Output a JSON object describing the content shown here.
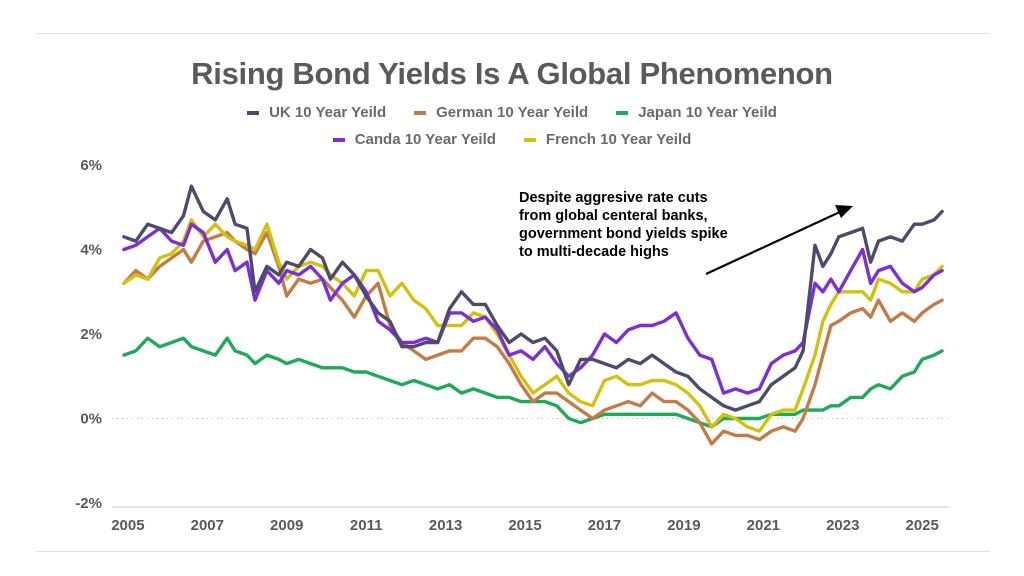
{
  "title": "Rising Bond Yields Is A Global Phenomenon",
  "legend": [
    {
      "label": "UK 10 Year Yeild",
      "color": "#4b4b6b"
    },
    {
      "label": "German 10 Year Yeild",
      "color": "#c27c45"
    },
    {
      "label": "Japan 10 Year Yeild",
      "color": "#1faa5a"
    },
    {
      "label": "Canda 10 Year Yeild",
      "color": "#7b2fd6"
    },
    {
      "label": "French 10 Year Yeild",
      "color": "#d2c20d"
    }
  ],
  "annotation": [
    "Despite aggresive rate cuts",
    "from global centeral banks,",
    "government bond yields spike",
    "to multi-decade highs"
  ],
  "chart_data": {
    "type": "line",
    "title": "Rising Bond Yields Is A Global Phenomenon",
    "xlabel": "",
    "ylabel": "",
    "xlim": [
      2004.6,
      2025.7
    ],
    "ylim": [
      -2,
      6
    ],
    "yticks": [
      -2,
      0,
      2,
      4,
      6
    ],
    "ytick_labels": [
      "-2%",
      "0%",
      "2%",
      "4%",
      "6%"
    ],
    "xticks": [
      2005,
      2007,
      2009,
      2011,
      2013,
      2015,
      2017,
      2019,
      2021,
      2023,
      2025
    ],
    "xtick_labels": [
      "2005",
      "2007",
      "2009",
      "2011",
      "2013",
      "2015",
      "2017",
      "2019",
      "2021",
      "2023",
      "2025"
    ],
    "grid": false,
    "zero_line": "dotted",
    "legend_position": "top-center",
    "series": [
      {
        "name": "UK 10 Year Yeild",
        "color": "#4b4b6b",
        "x": [
          2004.9,
          2005.2,
          2005.5,
          2005.8,
          2006.1,
          2006.4,
          2006.6,
          2006.9,
          2007.2,
          2007.5,
          2007.7,
          2008.0,
          2008.2,
          2008.5,
          2008.8,
          2009.0,
          2009.3,
          2009.6,
          2009.9,
          2010.1,
          2010.4,
          2010.7,
          2011.0,
          2011.3,
          2011.6,
          2011.9,
          2012.2,
          2012.5,
          2012.8,
          2013.1,
          2013.4,
          2013.7,
          2014.0,
          2014.3,
          2014.6,
          2014.9,
          2015.2,
          2015.5,
          2015.8,
          2016.1,
          2016.4,
          2016.7,
          2017.0,
          2017.3,
          2017.6,
          2017.9,
          2018.2,
          2018.5,
          2018.8,
          2019.1,
          2019.4,
          2019.7,
          2020.0,
          2020.3,
          2020.6,
          2020.9,
          2021.2,
          2021.5,
          2021.8,
          2022.0,
          2022.3,
          2022.5,
          2022.7,
          2022.9,
          2023.2,
          2023.5,
          2023.7,
          2023.9,
          2024.2,
          2024.5,
          2024.8,
          2025.0,
          2025.3,
          2025.5
        ],
        "values": [
          4.3,
          4.2,
          4.6,
          4.5,
          4.4,
          4.8,
          5.5,
          4.9,
          4.7,
          5.2,
          4.6,
          4.5,
          3.0,
          3.6,
          3.4,
          3.7,
          3.6,
          4.0,
          3.8,
          3.3,
          3.7,
          3.4,
          2.9,
          2.5,
          2.3,
          1.7,
          1.7,
          1.8,
          1.8,
          2.6,
          3.0,
          2.7,
          2.7,
          2.2,
          1.8,
          2.0,
          1.8,
          1.9,
          1.6,
          0.8,
          1.4,
          1.4,
          1.3,
          1.2,
          1.4,
          1.3,
          1.5,
          1.3,
          1.1,
          1.0,
          0.7,
          0.5,
          0.3,
          0.2,
          0.3,
          0.4,
          0.8,
          1.0,
          1.2,
          1.6,
          4.1,
          3.6,
          3.9,
          4.3,
          4.4,
          4.5,
          3.7,
          4.2,
          4.3,
          4.2,
          4.6,
          4.6,
          4.7,
          4.9
        ]
      },
      {
        "name": "German 10 Year Yeild",
        "color": "#c27c45",
        "x": [
          2004.9,
          2005.2,
          2005.5,
          2005.8,
          2006.1,
          2006.4,
          2006.6,
          2006.9,
          2007.2,
          2007.5,
          2007.7,
          2008.0,
          2008.2,
          2008.5,
          2008.8,
          2009.0,
          2009.3,
          2009.6,
          2009.9,
          2010.1,
          2010.4,
          2010.7,
          2011.0,
          2011.3,
          2011.6,
          2011.9,
          2012.2,
          2012.5,
          2012.8,
          2013.1,
          2013.4,
          2013.7,
          2014.0,
          2014.3,
          2014.6,
          2014.9,
          2015.2,
          2015.5,
          2015.8,
          2016.1,
          2016.4,
          2016.7,
          2017.0,
          2017.3,
          2017.6,
          2017.9,
          2018.2,
          2018.5,
          2018.8,
          2019.1,
          2019.4,
          2019.7,
          2020.0,
          2020.3,
          2020.6,
          2020.9,
          2021.2,
          2021.5,
          2021.8,
          2022.0,
          2022.3,
          2022.5,
          2022.7,
          2022.9,
          2023.2,
          2023.5,
          2023.7,
          2023.9,
          2024.2,
          2024.5,
          2024.8,
          2025.0,
          2025.3,
          2025.5
        ],
        "values": [
          3.2,
          3.5,
          3.3,
          3.6,
          3.8,
          4.0,
          3.7,
          4.2,
          4.3,
          4.4,
          4.2,
          4.0,
          3.9,
          4.4,
          3.6,
          2.9,
          3.3,
          3.2,
          3.3,
          3.1,
          2.8,
          2.4,
          2.9,
          3.2,
          2.2,
          1.8,
          1.6,
          1.4,
          1.5,
          1.6,
          1.6,
          1.9,
          1.9,
          1.7,
          1.3,
          0.8,
          0.4,
          0.6,
          0.6,
          0.4,
          0.2,
          0.0,
          0.2,
          0.3,
          0.4,
          0.3,
          0.6,
          0.4,
          0.4,
          0.2,
          -0.1,
          -0.6,
          -0.3,
          -0.4,
          -0.4,
          -0.5,
          -0.3,
          -0.2,
          -0.3,
          0.0,
          0.8,
          1.5,
          2.2,
          2.3,
          2.5,
          2.6,
          2.4,
          2.8,
          2.3,
          2.5,
          2.3,
          2.5,
          2.7,
          2.8
        ]
      },
      {
        "name": "Japan 10 Year Yeild",
        "color": "#1faa5a",
        "x": [
          2004.9,
          2005.2,
          2005.5,
          2005.8,
          2006.1,
          2006.4,
          2006.6,
          2006.9,
          2007.2,
          2007.5,
          2007.7,
          2008.0,
          2008.2,
          2008.5,
          2008.8,
          2009.0,
          2009.3,
          2009.6,
          2009.9,
          2010.1,
          2010.4,
          2010.7,
          2011.0,
          2011.3,
          2011.6,
          2011.9,
          2012.2,
          2012.5,
          2012.8,
          2013.1,
          2013.4,
          2013.7,
          2014.0,
          2014.3,
          2014.6,
          2014.9,
          2015.2,
          2015.5,
          2015.8,
          2016.1,
          2016.4,
          2016.7,
          2017.0,
          2017.3,
          2017.6,
          2017.9,
          2018.2,
          2018.5,
          2018.8,
          2019.1,
          2019.4,
          2019.7,
          2020.0,
          2020.3,
          2020.6,
          2020.9,
          2021.2,
          2021.5,
          2021.8,
          2022.0,
          2022.3,
          2022.5,
          2022.7,
          2022.9,
          2023.2,
          2023.5,
          2023.7,
          2023.9,
          2024.2,
          2024.5,
          2024.8,
          2025.0,
          2025.3,
          2025.5
        ],
        "values": [
          1.5,
          1.6,
          1.9,
          1.7,
          1.8,
          1.9,
          1.7,
          1.6,
          1.5,
          1.9,
          1.6,
          1.5,
          1.3,
          1.5,
          1.4,
          1.3,
          1.4,
          1.3,
          1.2,
          1.2,
          1.2,
          1.1,
          1.1,
          1.0,
          0.9,
          0.8,
          0.9,
          0.8,
          0.7,
          0.8,
          0.6,
          0.7,
          0.6,
          0.5,
          0.5,
          0.4,
          0.4,
          0.4,
          0.3,
          0.0,
          -0.1,
          0.0,
          0.1,
          0.1,
          0.1,
          0.1,
          0.1,
          0.1,
          0.1,
          0.0,
          -0.1,
          -0.2,
          0.0,
          0.0,
          0.0,
          0.0,
          0.1,
          0.1,
          0.1,
          0.2,
          0.2,
          0.2,
          0.3,
          0.3,
          0.5,
          0.5,
          0.7,
          0.8,
          0.7,
          1.0,
          1.1,
          1.4,
          1.5,
          1.6
        ]
      },
      {
        "name": "Canda 10 Year Yeild",
        "color": "#7b2fd6",
        "x": [
          2004.9,
          2005.2,
          2005.5,
          2005.8,
          2006.1,
          2006.4,
          2006.6,
          2006.9,
          2007.2,
          2007.5,
          2007.7,
          2008.0,
          2008.2,
          2008.5,
          2008.8,
          2009.0,
          2009.3,
          2009.6,
          2009.9,
          2010.1,
          2010.4,
          2010.7,
          2011.0,
          2011.3,
          2011.6,
          2011.9,
          2012.2,
          2012.5,
          2012.8,
          2013.1,
          2013.4,
          2013.7,
          2014.0,
          2014.3,
          2014.6,
          2014.9,
          2015.2,
          2015.5,
          2015.8,
          2016.1,
          2016.4,
          2016.7,
          2017.0,
          2017.3,
          2017.6,
          2017.9,
          2018.2,
          2018.5,
          2018.8,
          2019.1,
          2019.4,
          2019.7,
          2020.0,
          2020.3,
          2020.6,
          2020.9,
          2021.2,
          2021.5,
          2021.8,
          2022.0,
          2022.3,
          2022.5,
          2022.7,
          2022.9,
          2023.2,
          2023.5,
          2023.7,
          2023.9,
          2024.2,
          2024.5,
          2024.8,
          2025.0,
          2025.3,
          2025.5
        ],
        "values": [
          4.0,
          4.1,
          4.3,
          4.5,
          4.2,
          4.1,
          4.6,
          4.4,
          3.7,
          4.0,
          3.5,
          3.7,
          2.8,
          3.5,
          3.2,
          3.5,
          3.4,
          3.6,
          3.3,
          2.8,
          3.2,
          3.4,
          3.0,
          2.3,
          2.1,
          1.8,
          1.8,
          1.9,
          1.8,
          2.5,
          2.5,
          2.3,
          2.4,
          2.1,
          1.5,
          1.6,
          1.4,
          1.7,
          1.3,
          1.0,
          1.2,
          1.5,
          2.0,
          1.8,
          2.1,
          2.2,
          2.2,
          2.3,
          2.5,
          1.9,
          1.5,
          1.4,
          0.6,
          0.7,
          0.6,
          0.7,
          1.3,
          1.5,
          1.6,
          1.8,
          3.2,
          3.0,
          3.3,
          3.0,
          3.5,
          4.0,
          3.2,
          3.5,
          3.6,
          3.2,
          3.0,
          3.1,
          3.4,
          3.5
        ]
      },
      {
        "name": "French 10 Year Yeild",
        "color": "#d2c20d",
        "x": [
          2004.9,
          2005.2,
          2005.5,
          2005.8,
          2006.1,
          2006.4,
          2006.6,
          2006.9,
          2007.2,
          2007.5,
          2007.7,
          2008.0,
          2008.2,
          2008.5,
          2008.8,
          2009.0,
          2009.3,
          2009.6,
          2009.9,
          2010.1,
          2010.4,
          2010.7,
          2011.0,
          2011.3,
          2011.6,
          2011.9,
          2012.2,
          2012.5,
          2012.8,
          2013.1,
          2013.4,
          2013.7,
          2014.0,
          2014.3,
          2014.6,
          2014.9,
          2015.2,
          2015.5,
          2015.8,
          2016.1,
          2016.4,
          2016.7,
          2017.0,
          2017.3,
          2017.6,
          2017.9,
          2018.2,
          2018.5,
          2018.8,
          2019.1,
          2019.4,
          2019.7,
          2020.0,
          2020.3,
          2020.6,
          2020.9,
          2021.2,
          2021.5,
          2021.8,
          2022.0,
          2022.3,
          2022.5,
          2022.7,
          2022.9,
          2023.2,
          2023.5,
          2023.7,
          2023.9,
          2024.2,
          2024.5,
          2024.8,
          2025.0,
          2025.3,
          2025.5
        ],
        "values": [
          3.2,
          3.4,
          3.3,
          3.8,
          3.9,
          4.2,
          4.7,
          4.3,
          4.6,
          4.3,
          4.2,
          4.1,
          4.0,
          4.6,
          3.7,
          3.3,
          3.6,
          3.7,
          3.6,
          3.4,
          3.2,
          2.9,
          3.5,
          3.5,
          2.9,
          3.2,
          2.8,
          2.6,
          2.2,
          2.2,
          2.2,
          2.5,
          2.4,
          2.0,
          1.5,
          1.0,
          0.6,
          0.8,
          1.0,
          0.6,
          0.4,
          0.3,
          0.9,
          1.0,
          0.8,
          0.8,
          0.9,
          0.9,
          0.8,
          0.6,
          0.3,
          -0.2,
          0.1,
          0.0,
          -0.2,
          -0.3,
          0.1,
          0.2,
          0.2,
          0.7,
          1.5,
          2.3,
          2.7,
          3.0,
          3.0,
          3.0,
          2.8,
          3.3,
          3.2,
          3.0,
          3.0,
          3.3,
          3.4,
          3.6
        ]
      }
    ]
  }
}
